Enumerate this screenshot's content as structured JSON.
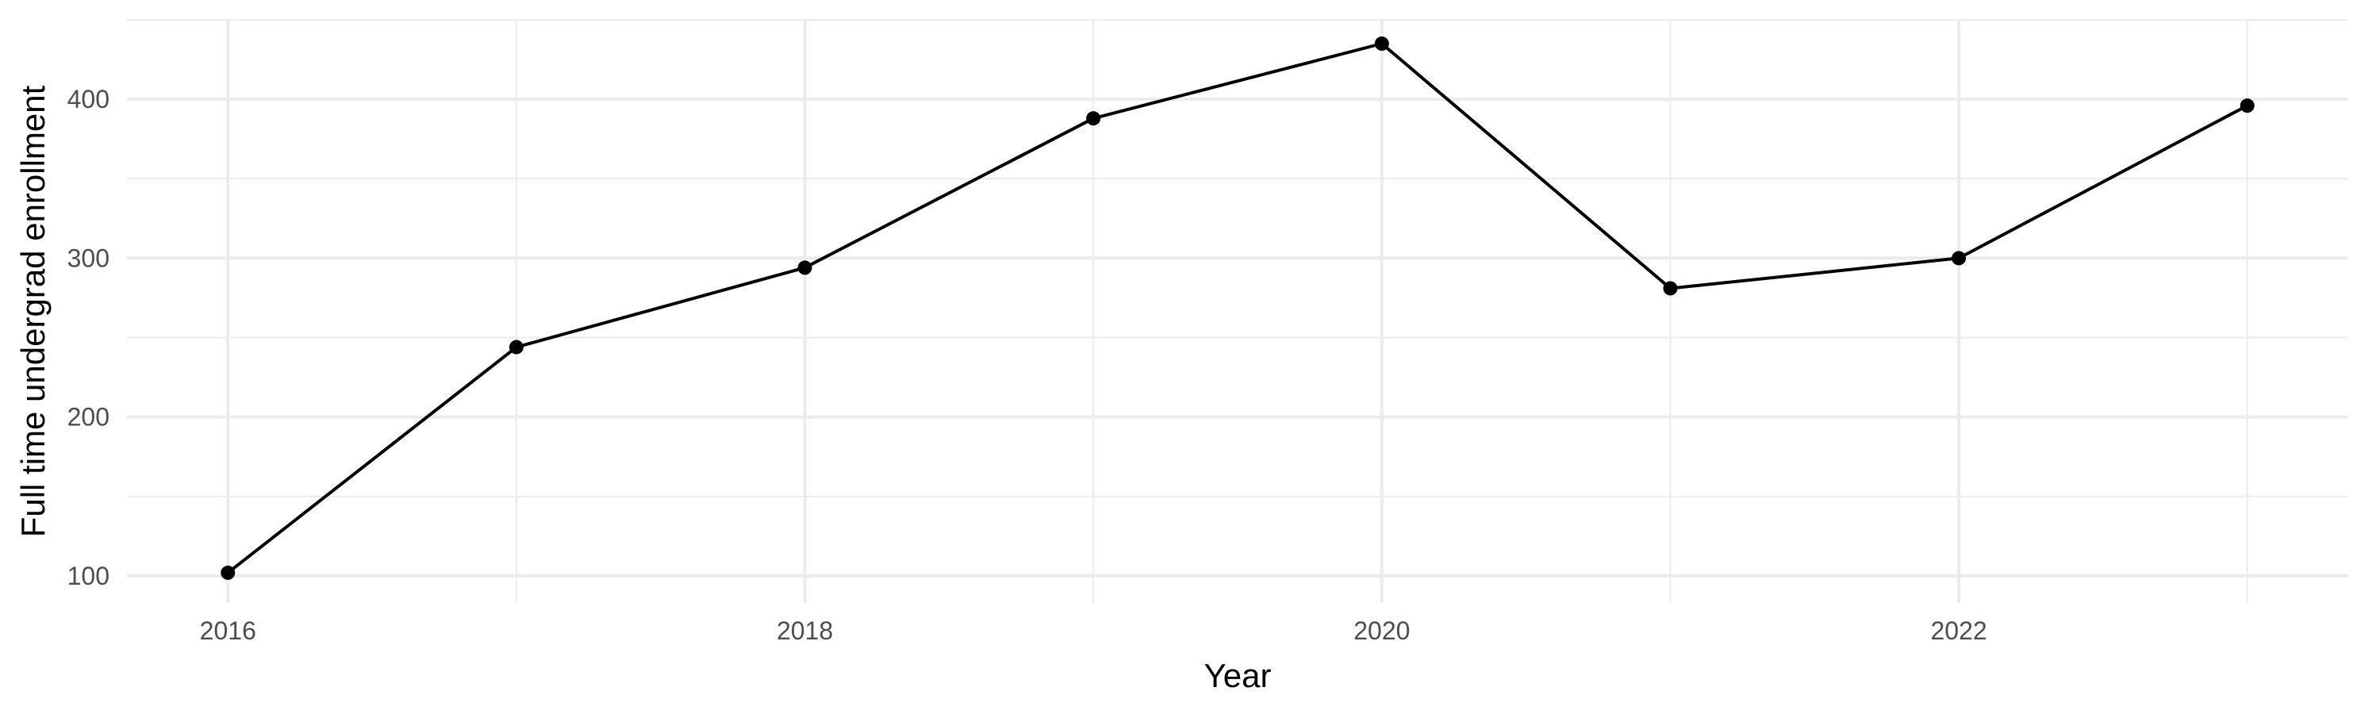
{
  "chart_data": {
    "type": "line",
    "title": "",
    "xlabel": "Year",
    "ylabel": "Full time undergrad enrollment",
    "x": [
      2016,
      2017,
      2018,
      2019,
      2020,
      2021,
      2022,
      2023
    ],
    "series": [
      {
        "values": [
          102,
          244,
          294,
          388,
          435,
          281,
          300,
          396
        ]
      }
    ],
    "xlim": [
      2015.65,
      2023.35
    ],
    "ylim": [
      83,
      450
    ],
    "x_ticks": [
      "2016",
      "2018",
      "2020",
      "2022"
    ],
    "y_ticks": [
      "100",
      "200",
      "300",
      "400"
    ],
    "grid": true,
    "legend": "none",
    "colors": {
      "line": "#000000",
      "grid": "#ebebeb",
      "background": "#ffffff"
    }
  }
}
